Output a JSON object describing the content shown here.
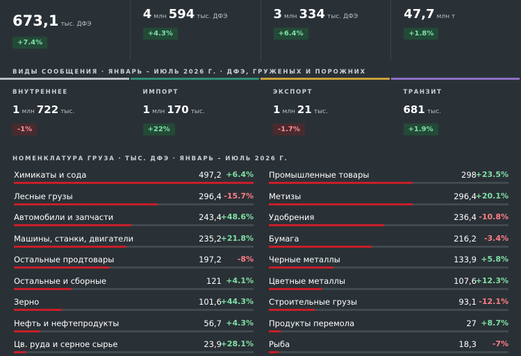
{
  "kpis": [
    {
      "label": "",
      "big": "673,1",
      "unit": "тыс. ДФЭ",
      "big2": "",
      "unit2": "",
      "change": "+7.4%",
      "dir": "pos"
    },
    {
      "label": "",
      "big": "4",
      "unit": "млн",
      "big2": "594",
      "unit2": "тыс. ДФЭ",
      "change": "+4.3%",
      "dir": "pos"
    },
    {
      "label": "",
      "big": "3",
      "unit": "млн",
      "big2": "334",
      "unit2": "тыс. ДФЭ",
      "change": "+6.4%",
      "dir": "pos"
    },
    {
      "label": "",
      "big": "47,7",
      "unit": "млн т",
      "big2": "",
      "unit2": "",
      "change": "+1.8%",
      "dir": "pos"
    }
  ],
  "modes_title": "ВИДЫ СООБЩЕНИЯ · ЯНВАРЬ – ИЮЛЬ 2026 Г. · ДФЭ, ГРУЖЕНЫХ И ПОРОЖНИХ",
  "modes": [
    {
      "label": "ВНУТРЕННЕЕ",
      "big": "1",
      "unit": "млн",
      "big2": "722",
      "unit2": "тыс.",
      "change": "-1%",
      "dir": "neg",
      "color": "#b9bfc3"
    },
    {
      "label": "ИМПОРТ",
      "big": "1",
      "unit": "млн",
      "big2": "170",
      "unit2": "тыс.",
      "change": "+22%",
      "dir": "pos",
      "color": "#2f8f7a"
    },
    {
      "label": "ЭКСПОРТ",
      "big": "1",
      "unit": "млн",
      "big2": "21",
      "unit2": "тыс.",
      "change": "-1.7%",
      "dir": "neg",
      "color": "#c9a23a"
    },
    {
      "label": "ТРАНЗИТ",
      "big": "681",
      "unit": "тыс.",
      "big2": "",
      "unit2": "",
      "change": "+1.9%",
      "dir": "pos",
      "color": "#8e6fc9"
    }
  ],
  "cargo_title": "НОМЕНКЛАТУРА ГРУЗА · ТЫС. ДФЭ · ЯНВАРЬ – ИЮЛЬ 2026 Г.",
  "cargo_left": [
    {
      "name": "Химикаты и сода",
      "value": "497,2",
      "change": "+6.4%",
      "dir": "pos",
      "share": 1.0
    },
    {
      "name": "Лесные грузы",
      "value": "296,4",
      "change": "-15.7%",
      "dir": "neg",
      "share": 0.6
    },
    {
      "name": "Автомобили и запчасти",
      "value": "243,4",
      "change": "+48.6%",
      "dir": "pos",
      "share": 0.49
    },
    {
      "name": "Машины, станки, двигатели",
      "value": "235,2",
      "change": "+21.8%",
      "dir": "pos",
      "share": 0.47
    },
    {
      "name": "Остальные продтовары",
      "value": "197,2",
      "change": "-8%",
      "dir": "neg",
      "share": 0.4
    },
    {
      "name": "Остальные и сборные",
      "value": "121",
      "change": "+4.1%",
      "dir": "pos",
      "share": 0.24
    },
    {
      "name": "Зерно",
      "value": "101,6",
      "change": "+44.3%",
      "dir": "pos",
      "share": 0.2
    },
    {
      "name": "Нефть и нефтепродукты",
      "value": "56,7",
      "change": "+4.3%",
      "dir": "pos",
      "share": 0.11
    },
    {
      "name": "Цв. руда и серное сырье",
      "value": "23,9",
      "change": "+28.1%",
      "dir": "pos",
      "share": 0.05
    }
  ],
  "cargo_right": [
    {
      "name": "Промышленные товары",
      "value": "298",
      "change": "+23.5%",
      "dir": "pos",
      "share": 0.6
    },
    {
      "name": "Метизы",
      "value": "296,4",
      "change": "+20.1%",
      "dir": "pos",
      "share": 0.6
    },
    {
      "name": "Удобрения",
      "value": "236,4",
      "change": "-10.8%",
      "dir": "neg",
      "share": 0.48
    },
    {
      "name": "Бумага",
      "value": "216,2",
      "change": "-3.4%",
      "dir": "neg",
      "share": 0.43
    },
    {
      "name": "Черные металлы",
      "value": "133,9",
      "change": "+5.8%",
      "dir": "pos",
      "share": 0.27
    },
    {
      "name": "Цветные металлы",
      "value": "107,6",
      "change": "+12.3%",
      "dir": "pos",
      "share": 0.22
    },
    {
      "name": "Строительные грузы",
      "value": "93,1",
      "change": "-12.1%",
      "dir": "neg",
      "share": 0.19
    },
    {
      "name": "Продукты перемола",
      "value": "27",
      "change": "+8.7%",
      "dir": "pos",
      "share": 0.05
    },
    {
      "name": "Рыба",
      "value": "18,3",
      "change": "-7%",
      "dir": "neg",
      "share": 0.04
    }
  ]
}
